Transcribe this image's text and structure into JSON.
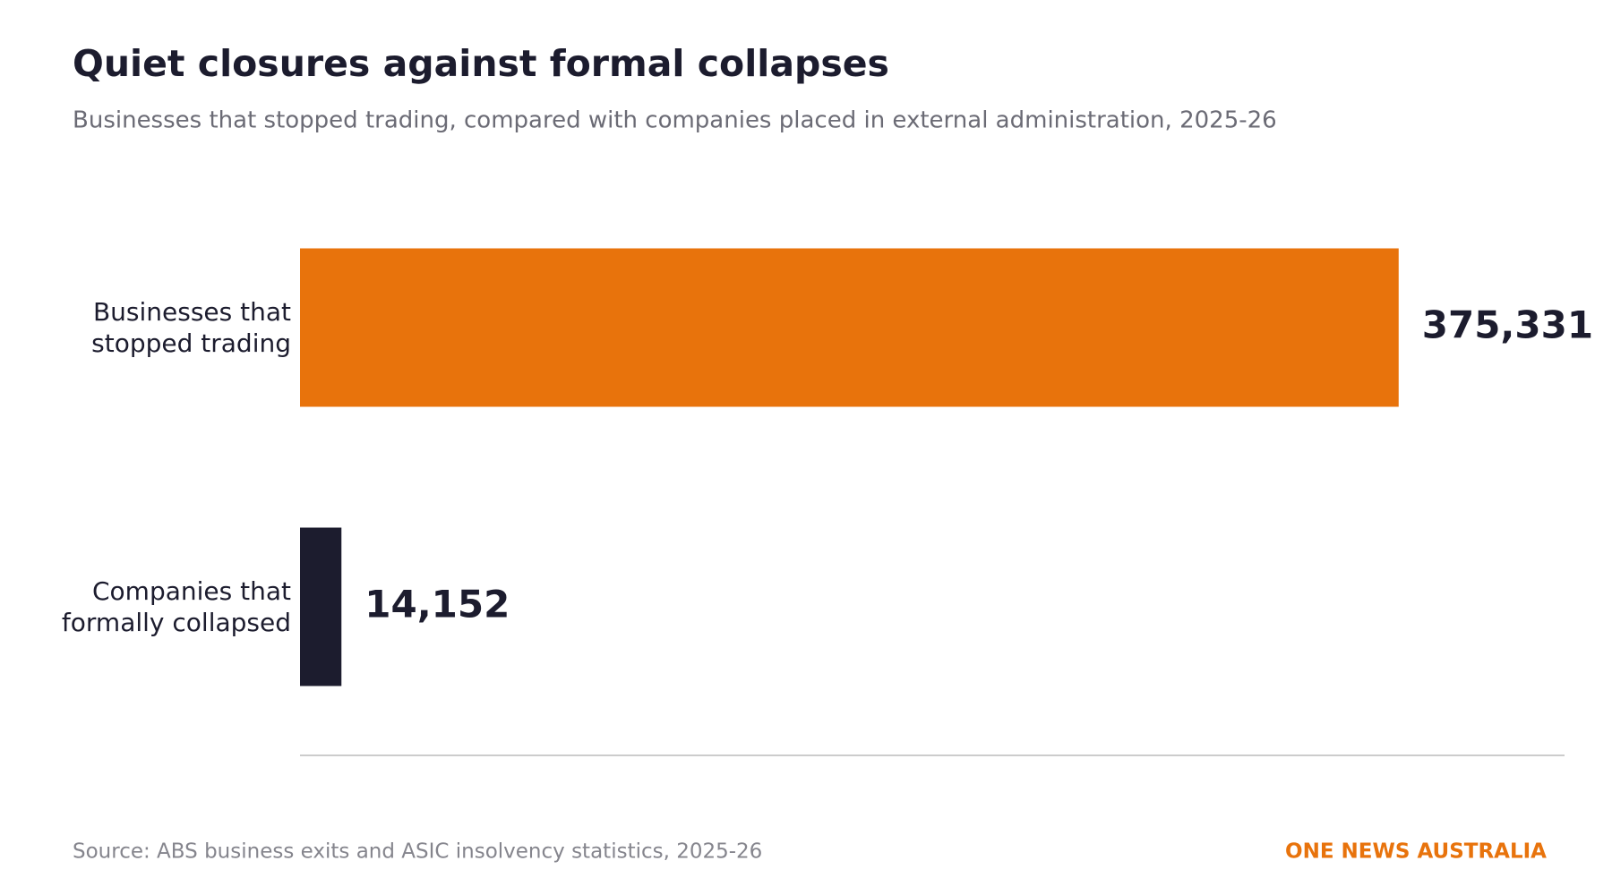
{
  "chart_data": {
    "type": "bar",
    "orientation": "horizontal",
    "title": "Quiet closures against formal collapses",
    "subtitle": "Businesses that stopped trading, compared with companies placed in external administration, 2025-26",
    "categories": [
      "Businesses that stopped trading",
      "Companies that formally collapsed"
    ],
    "values": [
      375331,
      14152
    ],
    "value_labels": [
      "375,331",
      "14,152"
    ],
    "colors": [
      "#e8730c",
      "#1c1c2e"
    ],
    "xlim": [
      0,
      432000
    ],
    "source": "Source: ABS business exits and ASIC insolvency statistics, 2025-26",
    "brand": "ONE NEWS AUSTRALIA"
  }
}
